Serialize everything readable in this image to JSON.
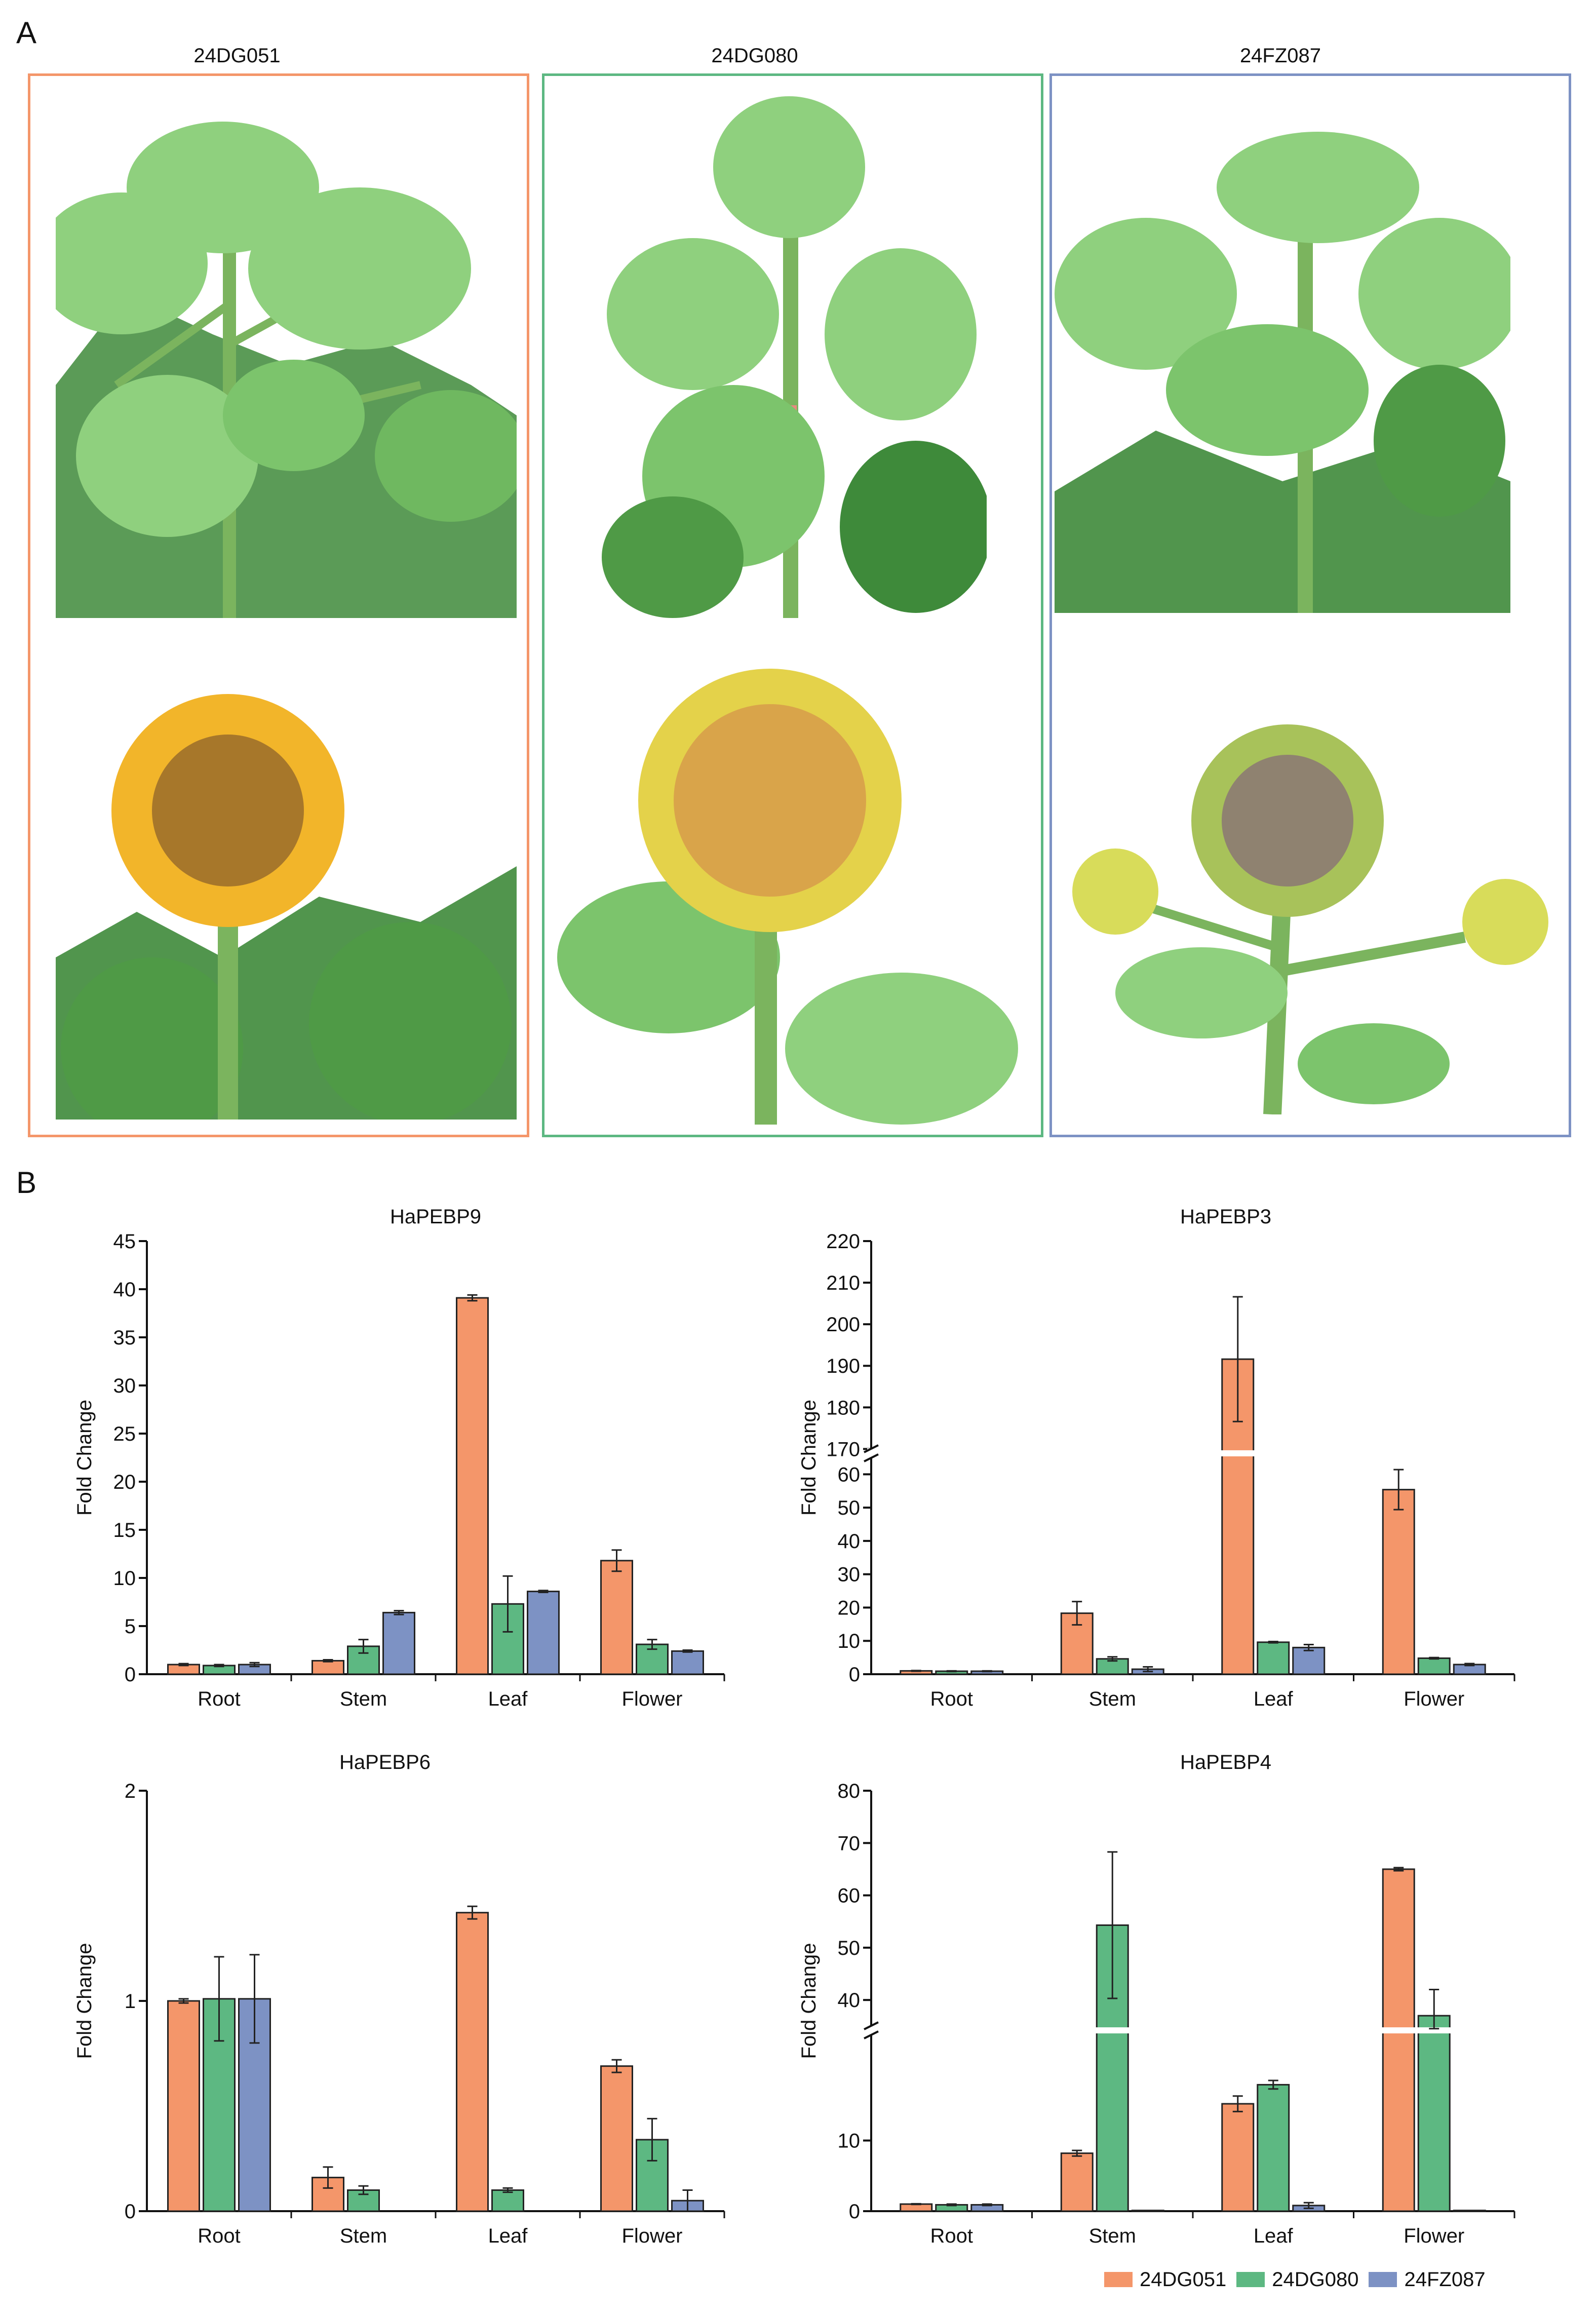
{
  "panels": {
    "a_label": "A",
    "b_label": "B"
  },
  "accessions": [
    {
      "name": "24DG051",
      "color": "#F4966A"
    },
    {
      "name": "24DG080",
      "color": "#5DB882"
    },
    {
      "name": "24FZ087",
      "color": "#7D92C4"
    }
  ],
  "colors": {
    "leaf_light": "#8FD07E",
    "leaf_dark": "#3E8A3A",
    "stem": "#7BB45E",
    "petal": "#F2B52A",
    "petal_pale": "#E4D24A",
    "disc": "#A7772A",
    "disc_gray": "#8F8270"
  },
  "legend": [
    "24DG051",
    "24DG080",
    "24FZ087"
  ],
  "chart_data": [
    {
      "type": "bar",
      "title": "HaPEBP9",
      "ylabel": "Fold Change",
      "categories": [
        "Root",
        "Stem",
        "Leaf",
        "Flower"
      ],
      "ylim": [
        0,
        45
      ],
      "yticks": [
        "0",
        "5",
        "10",
        "15",
        "20",
        "25",
        "30",
        "35",
        "40",
        "45"
      ],
      "series": [
        {
          "name": "24DG051",
          "values": [
            1.0,
            1.4,
            39.1,
            11.8
          ],
          "errors": [
            0.1,
            0.1,
            0.3,
            1.1
          ]
        },
        {
          "name": "24DG080",
          "values": [
            0.9,
            2.9,
            7.3,
            3.1
          ],
          "errors": [
            0.1,
            0.7,
            2.9,
            0.5
          ]
        },
        {
          "name": "24FZ087",
          "values": [
            1.0,
            6.4,
            8.6,
            2.4
          ],
          "errors": [
            0.2,
            0.2,
            0.1,
            0.1
          ]
        }
      ]
    },
    {
      "type": "bar",
      "title": "HaPEBP3",
      "ylabel": "Fold Change",
      "categories": [
        "Root",
        "Stem",
        "Leaf",
        "Flower"
      ],
      "axis_break": [
        65,
        170
      ],
      "ylim": [
        0,
        220
      ],
      "yticks": [
        "0",
        "10",
        "20",
        "30",
        "40",
        "50",
        "60",
        "170",
        "180",
        "190",
        "200",
        "210",
        "220"
      ],
      "series": [
        {
          "name": "24DG051",
          "values": [
            1.0,
            18.3,
            191.6,
            55.4
          ],
          "errors": [
            0.1,
            3.5,
            15.0,
            6.0
          ]
        },
        {
          "name": "24DG080",
          "values": [
            0.9,
            4.6,
            9.6,
            4.8
          ],
          "errors": [
            0.1,
            0.6,
            0.2,
            0.2
          ]
        },
        {
          "name": "24FZ087",
          "values": [
            0.9,
            1.5,
            8.0,
            2.9
          ],
          "errors": [
            0.1,
            0.7,
            0.9,
            0.3
          ]
        }
      ]
    },
    {
      "type": "bar",
      "title": "HaPEBP6",
      "ylabel": "Fold Change",
      "categories": [
        "Root",
        "Stem",
        "Leaf",
        "Flower"
      ],
      "ylim": [
        0,
        2
      ],
      "yticks": [
        "0",
        "1",
        "2"
      ],
      "series": [
        {
          "name": "24DG051",
          "values": [
            1.0,
            0.16,
            1.42,
            0.69
          ],
          "errors": [
            0.01,
            0.05,
            0.03,
            0.03
          ]
        },
        {
          "name": "24DG080",
          "values": [
            1.01,
            0.1,
            0.1,
            0.34
          ],
          "errors": [
            0.2,
            0.02,
            0.01,
            0.1
          ]
        },
        {
          "name": "24FZ087",
          "values": [
            1.01,
            0.0,
            0.0,
            0.05
          ],
          "errors": [
            0.21,
            0.0,
            0.0,
            0.05
          ]
        }
      ]
    },
    {
      "type": "bar",
      "title": "HaPEBP4",
      "ylabel": "Fold Change",
      "categories": [
        "Root",
        "Stem",
        "Leaf",
        "Flower"
      ],
      "axis_break": [
        25,
        35
      ],
      "ylim": [
        0,
        80
      ],
      "yticks": [
        "0",
        "10",
        "40",
        "50",
        "60",
        "70",
        "80"
      ],
      "series": [
        {
          "name": "24DG051",
          "values": [
            1.0,
            8.2,
            15.2,
            65.0
          ],
          "errors": [
            0.05,
            0.4,
            1.1,
            0.3
          ]
        },
        {
          "name": "24DG080",
          "values": [
            0.9,
            54.3,
            17.9,
            37.0
          ],
          "errors": [
            0.1,
            14.0,
            0.6,
            5.0
          ]
        },
        {
          "name": "24FZ087",
          "values": [
            0.9,
            0.1,
            0.8,
            0.1
          ],
          "errors": [
            0.1,
            0.0,
            0.4,
            0.0
          ]
        }
      ]
    }
  ]
}
